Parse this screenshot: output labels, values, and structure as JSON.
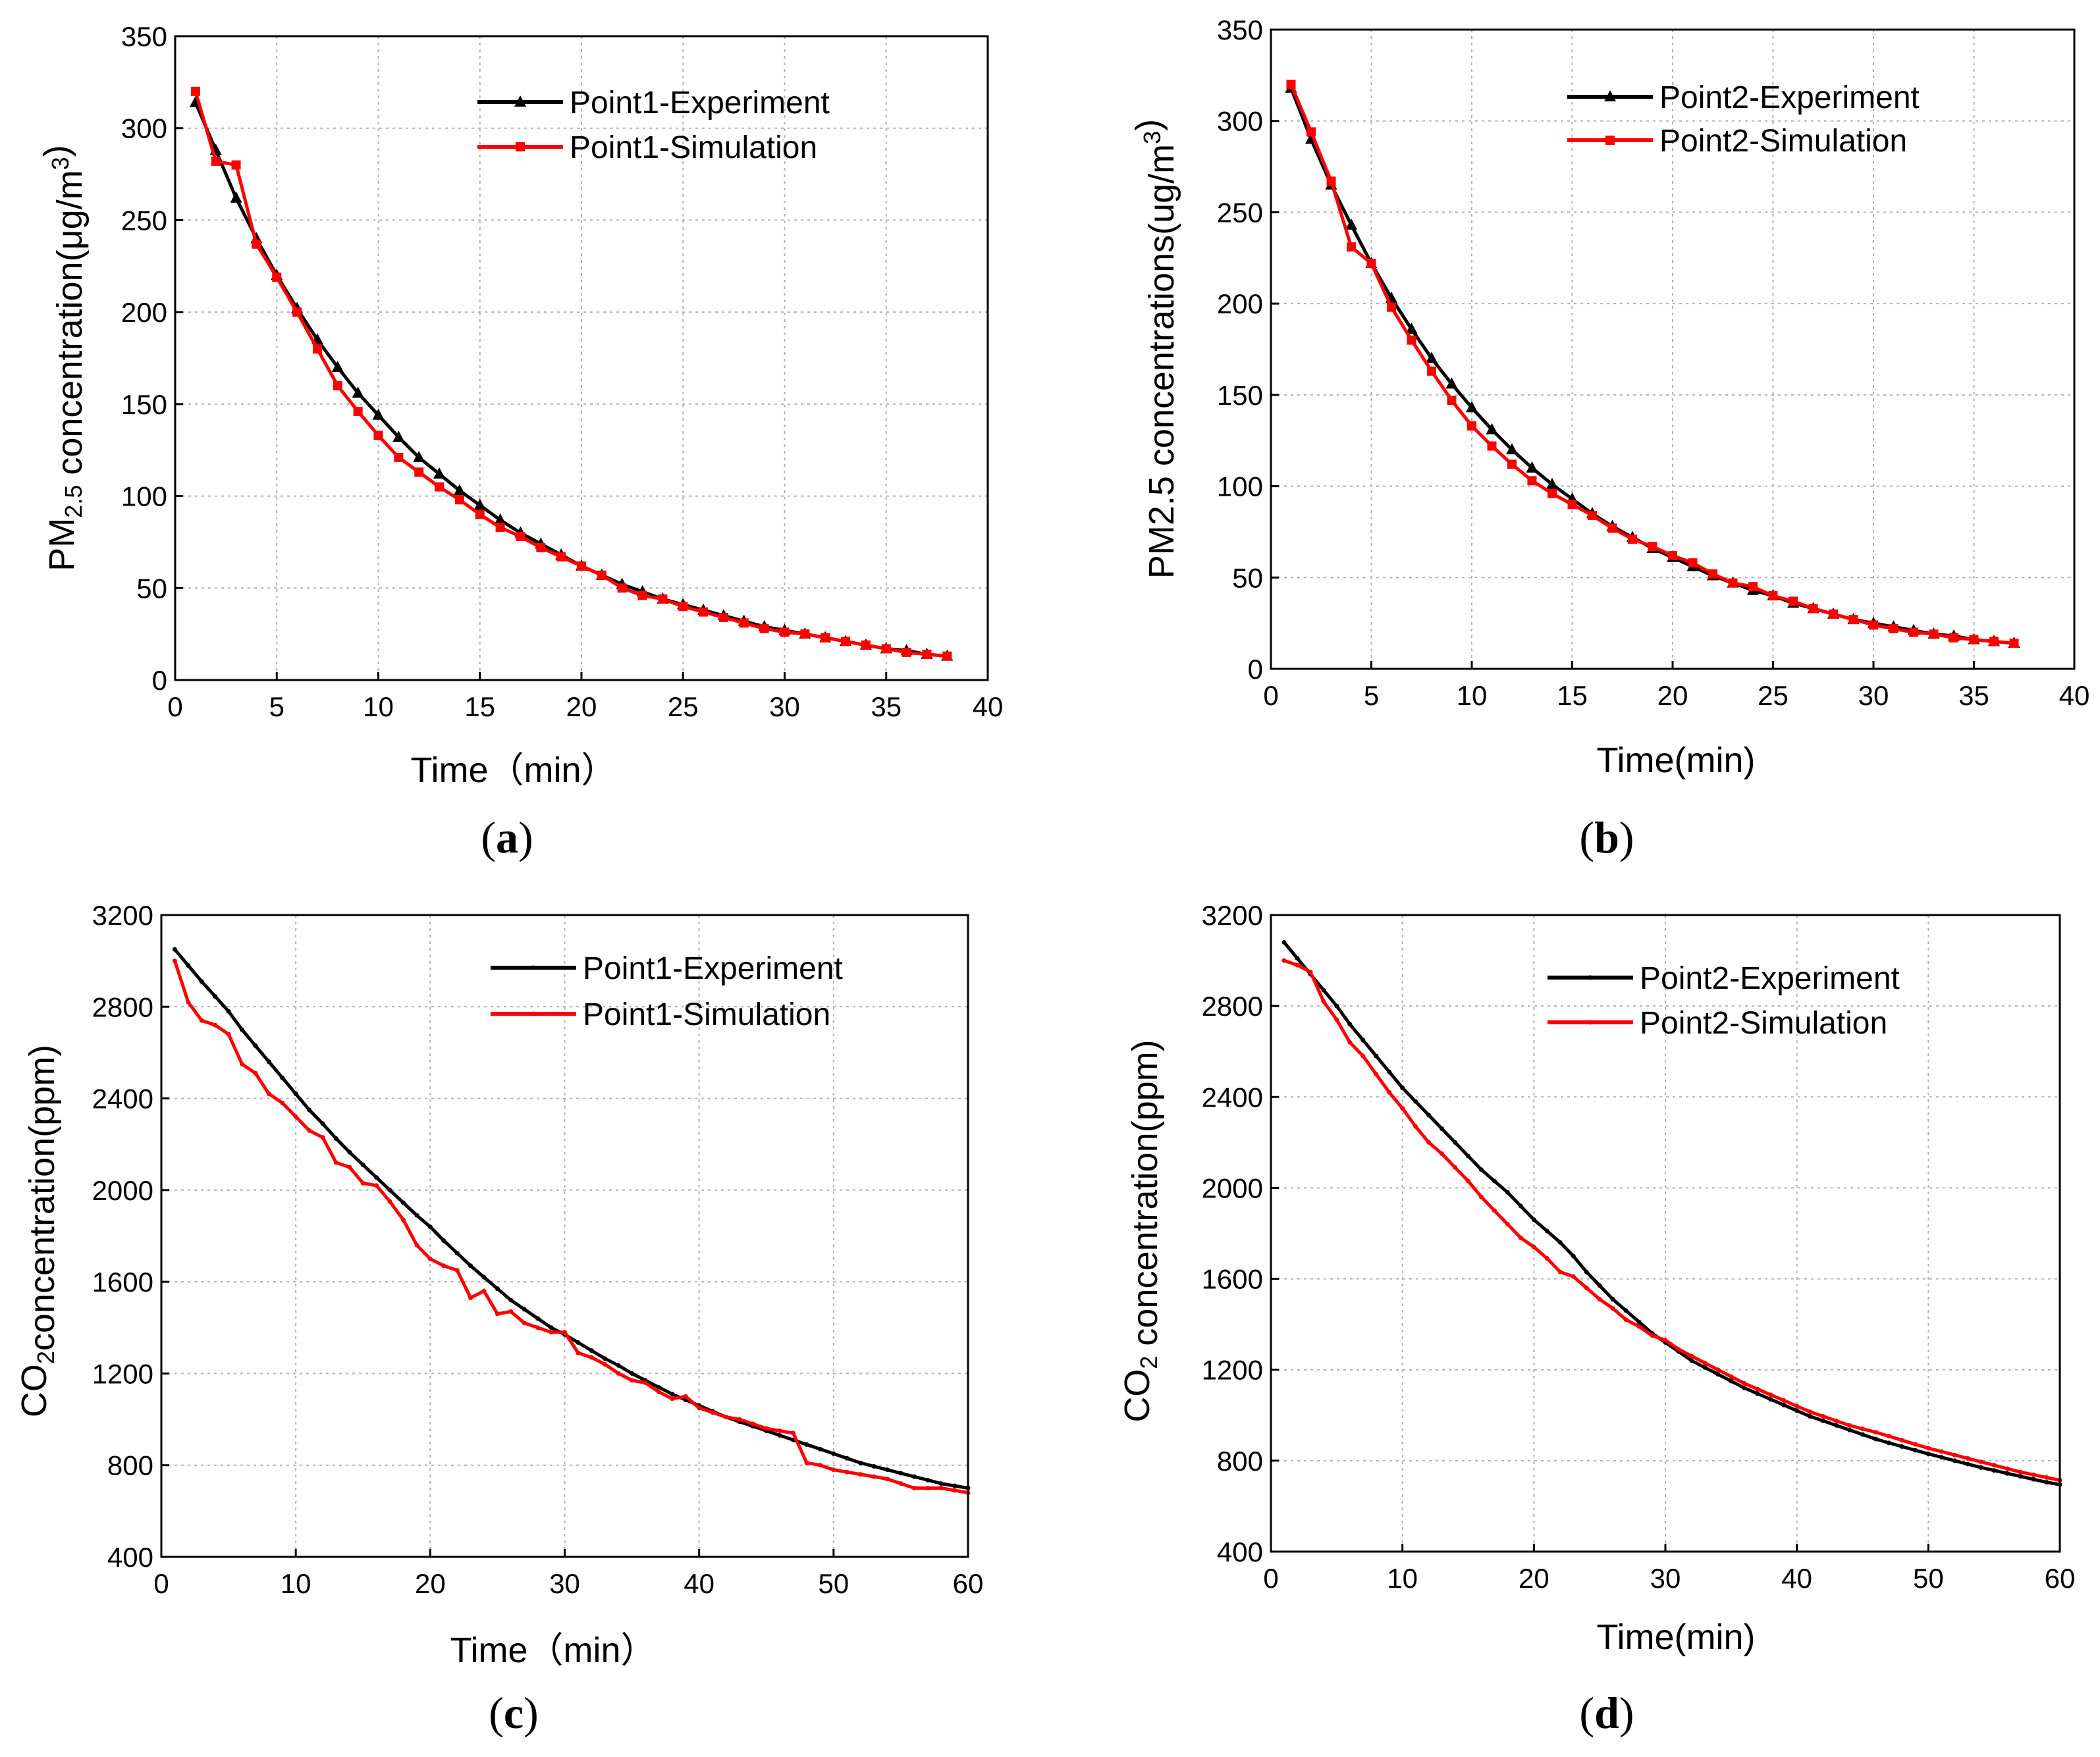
{
  "chart_data": [
    {
      "id": "a",
      "type": "line",
      "caption_letter": "a",
      "xlabel": "Time（min）",
      "ylabel": {
        "pre": "PM",
        "sub": "2.5",
        "mid": " concentration(μg/m",
        "sup": "3",
        "post": ")"
      },
      "xlim": [
        0,
        40
      ],
      "ylim": [
        0,
        350
      ],
      "xticks": [
        0,
        5,
        10,
        15,
        20,
        25,
        30,
        35,
        40
      ],
      "yticks": [
        0,
        50,
        100,
        150,
        200,
        250,
        300,
        350
      ],
      "series": [
        {
          "name": "Point1-Experiment",
          "color": "#000000",
          "marker": "triangle",
          "x": [
            1,
            2,
            3,
            4,
            5,
            6,
            7,
            8,
            9,
            10,
            11,
            12,
            13,
            14,
            15,
            16,
            17,
            18,
            19,
            20,
            21,
            22,
            23,
            24,
            25,
            26,
            27,
            28,
            29,
            30,
            31,
            32,
            33,
            34,
            35,
            36,
            37,
            38
          ],
          "y": [
            314,
            288,
            262,
            240,
            220,
            202,
            185,
            170,
            156,
            144,
            132,
            121,
            112,
            103,
            95,
            87,
            80,
            74,
            68,
            62,
            57,
            52,
            48,
            44,
            41,
            38,
            35,
            32,
            29,
            27,
            25,
            23,
            21,
            19,
            17,
            16,
            14,
            13
          ]
        },
        {
          "name": "Point1-Simulation",
          "color": "#ff0000",
          "marker": "square",
          "x": [
            1,
            2,
            3,
            4,
            5,
            6,
            7,
            8,
            9,
            10,
            11,
            12,
            13,
            14,
            15,
            16,
            17,
            18,
            19,
            20,
            21,
            22,
            23,
            24,
            25,
            26,
            27,
            28,
            29,
            30,
            31,
            32,
            33,
            34,
            35,
            36,
            37,
            38
          ],
          "y": [
            320,
            282,
            280,
            237,
            219,
            200,
            180,
            160,
            146,
            133,
            121,
            113,
            105,
            98,
            90,
            83,
            78,
            72,
            67,
            62,
            57,
            50,
            46,
            44,
            40,
            37,
            34,
            31,
            28,
            26,
            25,
            23,
            21,
            19,
            17,
            15,
            14,
            13
          ]
        }
      ]
    },
    {
      "id": "b",
      "type": "line",
      "caption_letter": "b",
      "xlabel": "Time(min)",
      "ylabel": {
        "pre": "PM2.5 concentrations(ug/m",
        "sup": "3",
        "post": ")"
      },
      "xlim": [
        0,
        40
      ],
      "ylim": [
        0,
        350
      ],
      "xticks": [
        0,
        5,
        10,
        15,
        20,
        25,
        30,
        35,
        40
      ],
      "yticks": [
        0,
        50,
        100,
        150,
        200,
        250,
        300,
        350
      ],
      "series": [
        {
          "name": "Point2-Experiment",
          "color": "#000000",
          "marker": "triangle",
          "x": [
            1,
            2,
            3,
            4,
            5,
            6,
            7,
            8,
            9,
            10,
            11,
            12,
            13,
            14,
            15,
            16,
            17,
            18,
            19,
            20,
            21,
            22,
            23,
            24,
            25,
            26,
            27,
            28,
            29,
            30,
            31,
            32,
            33,
            34,
            35,
            36,
            37
          ],
          "y": [
            318,
            290,
            265,
            243,
            222,
            203,
            186,
            170,
            156,
            143,
            131,
            120,
            110,
            101,
            93,
            85,
            78,
            72,
            66,
            61,
            56,
            51,
            47,
            43,
            40,
            36,
            33,
            30,
            27,
            25,
            23,
            21,
            19,
            18,
            16,
            15,
            14
          ]
        },
        {
          "name": "Point2-Simulation",
          "color": "#ff0000",
          "marker": "square",
          "x": [
            1,
            2,
            3,
            4,
            5,
            6,
            7,
            8,
            9,
            10,
            11,
            12,
            13,
            14,
            15,
            16,
            17,
            18,
            19,
            20,
            21,
            22,
            23,
            24,
            25,
            26,
            27,
            28,
            29,
            30,
            31,
            32,
            33,
            34,
            35,
            36,
            37
          ],
          "y": [
            320,
            294,
            267,
            231,
            222,
            198,
            180,
            163,
            147,
            133,
            122,
            112,
            103,
            96,
            90,
            84,
            77,
            71,
            67,
            62,
            58,
            52,
            47,
            45,
            40,
            37,
            33,
            30,
            27,
            24,
            22,
            20,
            19,
            17,
            16,
            15,
            14
          ]
        }
      ]
    },
    {
      "id": "c",
      "type": "line",
      "caption_letter": "c",
      "xlabel": "Time（min）",
      "ylabel": {
        "pre": "CO",
        "sub": "2",
        "post": "concentration(ppm)"
      },
      "xlim": [
        0,
        60
      ],
      "ylim": [
        400,
        3200
      ],
      "xticks": [
        0,
        10,
        20,
        30,
        40,
        50,
        60
      ],
      "yticks": [
        400,
        800,
        1200,
        1600,
        2000,
        2400,
        2800,
        3200
      ],
      "series": [
        {
          "name": "Point1-Experiment",
          "color": "#000000",
          "marker": "small",
          "x": [
            1,
            2,
            3,
            4,
            5,
            6,
            7,
            8,
            9,
            10,
            11,
            12,
            13,
            14,
            15,
            16,
            17,
            18,
            19,
            20,
            21,
            22,
            23,
            24,
            25,
            26,
            27,
            28,
            29,
            30,
            31,
            32,
            33,
            34,
            35,
            36,
            37,
            38,
            39,
            40,
            41,
            42,
            43,
            44,
            45,
            46,
            47,
            48,
            49,
            50,
            51,
            52,
            53,
            54,
            55,
            56,
            57,
            58,
            59,
            60
          ],
          "y": [
            3050,
            2980,
            2910,
            2845,
            2780,
            2700,
            2630,
            2560,
            2490,
            2420,
            2350,
            2290,
            2225,
            2165,
            2110,
            2055,
            2000,
            1945,
            1890,
            1840,
            1780,
            1725,
            1670,
            1620,
            1570,
            1520,
            1480,
            1440,
            1400,
            1370,
            1335,
            1300,
            1265,
            1235,
            1200,
            1170,
            1140,
            1110,
            1085,
            1060,
            1035,
            1010,
            990,
            970,
            950,
            930,
            910,
            890,
            870,
            850,
            830,
            810,
            795,
            780,
            765,
            750,
            735,
            720,
            710,
            700
          ]
        },
        {
          "name": "Point1-Simulation",
          "color": "#ff0000",
          "marker": "small",
          "x": [
            1,
            2,
            3,
            4,
            5,
            6,
            7,
            8,
            9,
            10,
            11,
            12,
            13,
            14,
            15,
            16,
            17,
            18,
            19,
            20,
            21,
            22,
            23,
            24,
            25,
            26,
            27,
            28,
            29,
            30,
            31,
            32,
            33,
            34,
            35,
            36,
            37,
            38,
            39,
            40,
            41,
            42,
            43,
            44,
            45,
            46,
            47,
            48,
            49,
            50,
            51,
            52,
            53,
            54,
            55,
            56,
            57,
            58,
            59,
            60
          ],
          "y": [
            3000,
            2820,
            2740,
            2720,
            2680,
            2550,
            2510,
            2420,
            2380,
            2320,
            2260,
            2230,
            2120,
            2100,
            2030,
            2020,
            1950,
            1870,
            1760,
            1700,
            1670,
            1650,
            1530,
            1560,
            1460,
            1470,
            1420,
            1400,
            1380,
            1380,
            1290,
            1270,
            1240,
            1200,
            1170,
            1160,
            1120,
            1090,
            1100,
            1050,
            1030,
            1010,
            1000,
            980,
            960,
            950,
            940,
            810,
            800,
            780,
            770,
            760,
            750,
            740,
            720,
            700,
            700,
            700,
            690,
            680
          ]
        }
      ]
    },
    {
      "id": "d",
      "type": "line",
      "caption_letter": "d",
      "xlabel": "Time(min)",
      "ylabel": {
        "pre": "CO",
        "sub": "2",
        "post": " concentration(ppm)"
      },
      "xlim": [
        0,
        60
      ],
      "ylim": [
        400,
        3200
      ],
      "xticks": [
        0,
        10,
        20,
        30,
        40,
        50,
        60
      ],
      "yticks": [
        400,
        800,
        1200,
        1600,
        2000,
        2400,
        2800,
        3200
      ],
      "series": [
        {
          "name": "Point2-Experiment",
          "color": "#000000",
          "marker": "small",
          "x": [
            1,
            2,
            3,
            4,
            5,
            6,
            7,
            8,
            9,
            10,
            11,
            12,
            13,
            14,
            15,
            16,
            17,
            18,
            19,
            20,
            21,
            22,
            23,
            24,
            25,
            26,
            27,
            28,
            29,
            30,
            31,
            32,
            33,
            34,
            35,
            36,
            37,
            38,
            39,
            40,
            41,
            42,
            43,
            44,
            45,
            46,
            47,
            48,
            49,
            50,
            51,
            52,
            53,
            54,
            55,
            56,
            57,
            58,
            59,
            60
          ],
          "y": [
            3080,
            3010,
            2940,
            2870,
            2800,
            2720,
            2650,
            2580,
            2510,
            2440,
            2380,
            2320,
            2260,
            2200,
            2140,
            2080,
            2030,
            1980,
            1920,
            1860,
            1810,
            1760,
            1700,
            1630,
            1570,
            1510,
            1460,
            1410,
            1360,
            1320,
            1280,
            1240,
            1210,
            1180,
            1150,
            1120,
            1095,
            1070,
            1045,
            1020,
            995,
            975,
            955,
            935,
            915,
            895,
            878,
            862,
            846,
            830,
            815,
            800,
            785,
            770,
            757,
            744,
            731,
            718,
            705,
            695
          ]
        },
        {
          "name": "Point2-Simulation",
          "color": "#ff0000",
          "marker": "small",
          "x": [
            1,
            2,
            3,
            4,
            5,
            6,
            7,
            8,
            9,
            10,
            11,
            12,
            13,
            14,
            15,
            16,
            17,
            18,
            19,
            20,
            21,
            22,
            23,
            24,
            25,
            26,
            27,
            28,
            29,
            30,
            31,
            32,
            33,
            34,
            35,
            36,
            37,
            38,
            39,
            40,
            41,
            42,
            43,
            44,
            45,
            46,
            47,
            48,
            49,
            50,
            51,
            52,
            53,
            54,
            55,
            56,
            57,
            58,
            59,
            60
          ],
          "y": [
            3000,
            2980,
            2950,
            2820,
            2740,
            2640,
            2580,
            2500,
            2420,
            2350,
            2270,
            2200,
            2150,
            2090,
            2030,
            1960,
            1900,
            1840,
            1780,
            1740,
            1690,
            1630,
            1610,
            1560,
            1510,
            1470,
            1420,
            1390,
            1350,
            1330,
            1290,
            1260,
            1230,
            1200,
            1170,
            1140,
            1115,
            1090,
            1065,
            1040,
            1015,
            995,
            975,
            955,
            940,
            925,
            908,
            890,
            872,
            855,
            840,
            825,
            810,
            795,
            780,
            765,
            750,
            738,
            726,
            714
          ]
        }
      ]
    }
  ]
}
